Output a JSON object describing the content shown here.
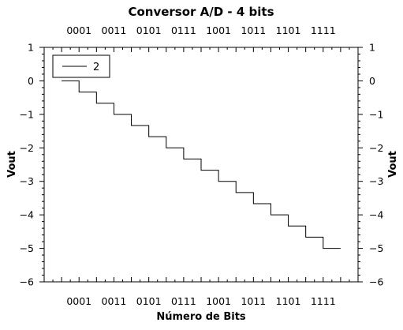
{
  "chart_data": {
    "type": "line",
    "step": "post",
    "title": "Conversor A/D - 4 bits",
    "xlabel": "Número de Bits",
    "ylabel": "Vout",
    "ylabel_right": "Vout",
    "xlim": [
      -1,
      17
    ],
    "ylim": [
      -6,
      1
    ],
    "x_tick_labels": [
      {
        "x": 1,
        "label": "0001"
      },
      {
        "x": 3,
        "label": "0011"
      },
      {
        "x": 5,
        "label": "0101"
      },
      {
        "x": 7,
        "label": "0111"
      },
      {
        "x": 9,
        "label": "1001"
      },
      {
        "x": 11,
        "label": "1011"
      },
      {
        "x": 13,
        "label": "1101"
      },
      {
        "x": 15,
        "label": "1111"
      }
    ],
    "y_ticks": [
      1,
      0,
      -1,
      -2,
      -3,
      -4,
      -5,
      -6
    ],
    "y_tick_labels": [
      "1",
      "0",
      "−1",
      "−2",
      "−3",
      "−4",
      "−5",
      "−6"
    ],
    "legend": {
      "position": "top-left",
      "entries": [
        "2"
      ]
    },
    "grid": false,
    "series": [
      {
        "name": "2",
        "color": "#000000",
        "x": [
          0,
          1,
          2,
          3,
          4,
          5,
          6,
          7,
          8,
          9,
          10,
          11,
          12,
          13,
          14,
          15
        ],
        "y": [
          0,
          -0.3333,
          -0.6667,
          -1.0,
          -1.3333,
          -1.6667,
          -2.0,
          -2.3333,
          -2.6667,
          -3.0,
          -3.3333,
          -3.6667,
          -4.0,
          -4.3333,
          -4.6667,
          -5.0
        ]
      }
    ]
  }
}
